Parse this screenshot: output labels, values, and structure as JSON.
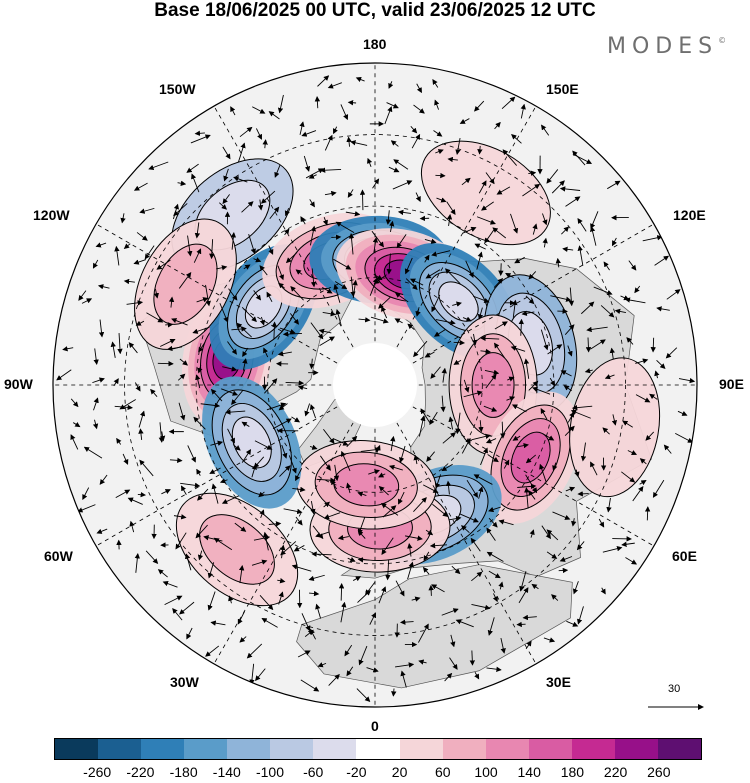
{
  "title": "Base 18/06/2025 00 UTC, valid 23/06/2025 12 UTC",
  "brand": "MODES",
  "brand_mark": "©",
  "longitude_labels": {
    "top": "180",
    "bottom": "0",
    "left": "90W",
    "right": "90E",
    "upper_left_1": "150W",
    "upper_left_2": "120W",
    "upper_right_1": "150E",
    "upper_right_2": "120E",
    "lower_left_1": "60W",
    "lower_left_2": "30W",
    "lower_right_1": "60E",
    "lower_right_2": "30E"
  },
  "vector_scale": {
    "label": "30",
    "icon": "arrow-right-icon"
  },
  "colorbar": {
    "colors": [
      "#0a3a5c",
      "#1b5f91",
      "#2f7fb7",
      "#5a9cc9",
      "#8fb4d9",
      "#bac9e3",
      "#dcdcec",
      "#ffffff",
      "#f5d6d9",
      "#f0afbf",
      "#e887b1",
      "#d95ca3",
      "#c52a92",
      "#971089",
      "#5e0f71"
    ],
    "ticks": [
      "-260",
      "-220",
      "-180",
      "-140",
      "-100",
      "-60",
      "-20",
      "20",
      "60",
      "100",
      "140",
      "180",
      "220",
      "260"
    ]
  },
  "map": {
    "projection": "north-polar-stereographic",
    "field": "anomaly",
    "ocean_color": "#f2f2f2",
    "land_outline_color": "#555555",
    "anomaly_centers": [
      {
        "lon": -100,
        "lat": 48,
        "value": 240
      },
      {
        "lon": -125,
        "lat": 52,
        "value": -200
      },
      {
        "lon": -160,
        "lat": 53,
        "value": 170
      },
      {
        "lon": 178,
        "lat": 55,
        "value": -190
      },
      {
        "lon": 165,
        "lat": 58,
        "value": 220
      },
      {
        "lon": 135,
        "lat": 57,
        "value": -190
      },
      {
        "lon": 105,
        "lat": 45,
        "value": -100
      },
      {
        "lon": 90,
        "lat": 57,
        "value": 110
      },
      {
        "lon": 65,
        "lat": 42,
        "value": 160
      },
      {
        "lon": 25,
        "lat": 50,
        "value": -170
      },
      {
        "lon": 2,
        "lat": 50,
        "value": 120
      },
      {
        "lon": -5,
        "lat": 62,
        "value": 130
      },
      {
        "lon": -65,
        "lat": 52,
        "value": -160
      },
      {
        "lon": -140,
        "lat": 28,
        "value": -60
      },
      {
        "lon": -118,
        "lat": 30,
        "value": 60
      },
      {
        "lon": 150,
        "lat": 28,
        "value": 50
      },
      {
        "lon": 80,
        "lat": 22,
        "value": 50
      },
      {
        "lon": -40,
        "lat": 30,
        "value": 60
      }
    ]
  }
}
